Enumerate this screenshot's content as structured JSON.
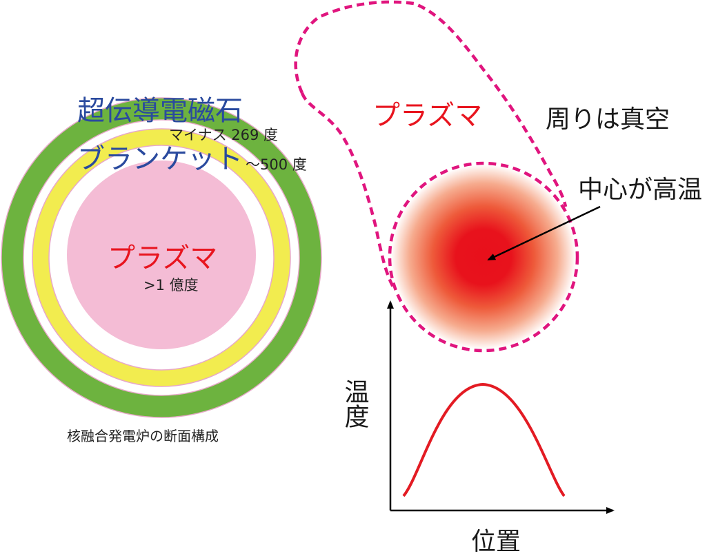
{
  "cross_section": {
    "magnet_label": "超伝導電磁石",
    "magnet_temp": "マイナス 269 度",
    "blanket_label": "ブランケット",
    "blanket_temp": "〜500 度",
    "plasma_label": "プラズマ",
    "plasma_temp": ">1 億度",
    "caption": "核融合発電炉の断面構成"
  },
  "plasma_detail": {
    "plasma_label": "プラズマ",
    "vacuum_label": "周りは真空",
    "center_label": "中心が高温"
  },
  "temperature_graph": {
    "ylabel": "温度",
    "xlabel": "位置"
  },
  "colors": {
    "magnet_green": "#6db33f",
    "blanket_yellow": "#f2ec4f",
    "plasma_pink": "#f4bcd5",
    "ring_outline": "#e7a8c8",
    "label_blue": "#2a4a9e",
    "label_red": "#e8141e",
    "dashed_magenta": "#e0157e",
    "curve_red": "#e31b23"
  }
}
